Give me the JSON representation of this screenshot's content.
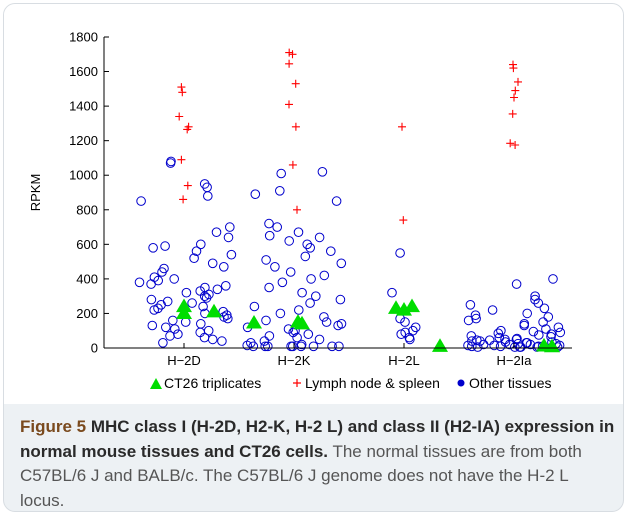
{
  "chart_data": {
    "type": "scatter",
    "categories": [
      "H−2D",
      "H−2K",
      "H−2L",
      "H−2Ia"
    ],
    "ylabel": "RPKM",
    "xlabel": "",
    "ylim": [
      0,
      1800
    ],
    "yticks": [
      0,
      200,
      400,
      600,
      800,
      1000,
      1200,
      1400,
      1600,
      1800
    ],
    "grid": false,
    "legend_position": "bottom",
    "series": [
      {
        "name": "CT26 triplicates",
        "marker": "filled-triangle",
        "color": "#00dd00",
        "values": [
          [
            240,
            210,
            200
          ],
          [
            145,
            150,
            140
          ],
          [
            230,
            220,
            240
          ],
          [
            10,
            12,
            8
          ]
        ]
      },
      {
        "name": "Lymph node & spleen",
        "marker": "plus",
        "color": "#ff0000",
        "values": [
          [
            1510,
            1480,
            1340,
            1280,
            1265,
            1090,
            940,
            860
          ],
          [
            1710,
            1700,
            1645,
            1530,
            1410,
            1280,
            1060,
            800
          ],
          [
            1280,
            740
          ],
          [
            1640,
            1620,
            1540,
            1490,
            1450,
            1355,
            1185,
            1175
          ]
        ]
      },
      {
        "name": "Other tissues",
        "marker": "open-circle",
        "color": "#0000cc",
        "values": [
          [
            1080,
            1070,
            950,
            930,
            880,
            850,
            700,
            670,
            640,
            600,
            590,
            580,
            560,
            540,
            520,
            490,
            470,
            460,
            440,
            410,
            400,
            390,
            380,
            370,
            360,
            350,
            340,
            330,
            320,
            310,
            300,
            290,
            280,
            270,
            260,
            250,
            240,
            230,
            220,
            210,
            200,
            190,
            180,
            170,
            160,
            150,
            140,
            130,
            120,
            110,
            100,
            90,
            80,
            70,
            60,
            50,
            40,
            30
          ],
          [
            1020,
            1010,
            910,
            890,
            850,
            720,
            700,
            670,
            650,
            640,
            620,
            600,
            580,
            560,
            530,
            510,
            490,
            470,
            440,
            420,
            400,
            380,
            350,
            320,
            300,
            280,
            260,
            240,
            220,
            200,
            180,
            160,
            150,
            140,
            130,
            120,
            110,
            100,
            90,
            80,
            70,
            60,
            50,
            40,
            30,
            20,
            15,
            10,
            10,
            10,
            10,
            10,
            10,
            10,
            10,
            10
          ],
          [
            550,
            320,
            170,
            150,
            120,
            100,
            90,
            80,
            60,
            50
          ],
          [
            400,
            370,
            300,
            280,
            260,
            250,
            230,
            220,
            200,
            190,
            180,
            170,
            160,
            150,
            140,
            130,
            120,
            110,
            100,
            95,
            90,
            85,
            80,
            75,
            70,
            65,
            60,
            55,
            50,
            50,
            45,
            45,
            40,
            40,
            35,
            35,
            30,
            30,
            25,
            25,
            20,
            20,
            20,
            15,
            15,
            15,
            10,
            10,
            10,
            10,
            5,
            5,
            5,
            5,
            5,
            5
          ]
        ]
      }
    ]
  },
  "caption": {
    "label": "Figure 5",
    "title": "MHC class I (H-2D, H2-K, H-2 L) and class II (H2-IA) expression in normal mouse tissues and CT26 cells.",
    "body": "The normal tissues are from both C57BL/6 J and BALB/c. The C57BL/6 J genome does not have the H-2 L locus."
  },
  "colors": {
    "panel_background": "#edf1f4",
    "plot_background": "#ffffff",
    "caption_label": "#7a4a1e"
  }
}
